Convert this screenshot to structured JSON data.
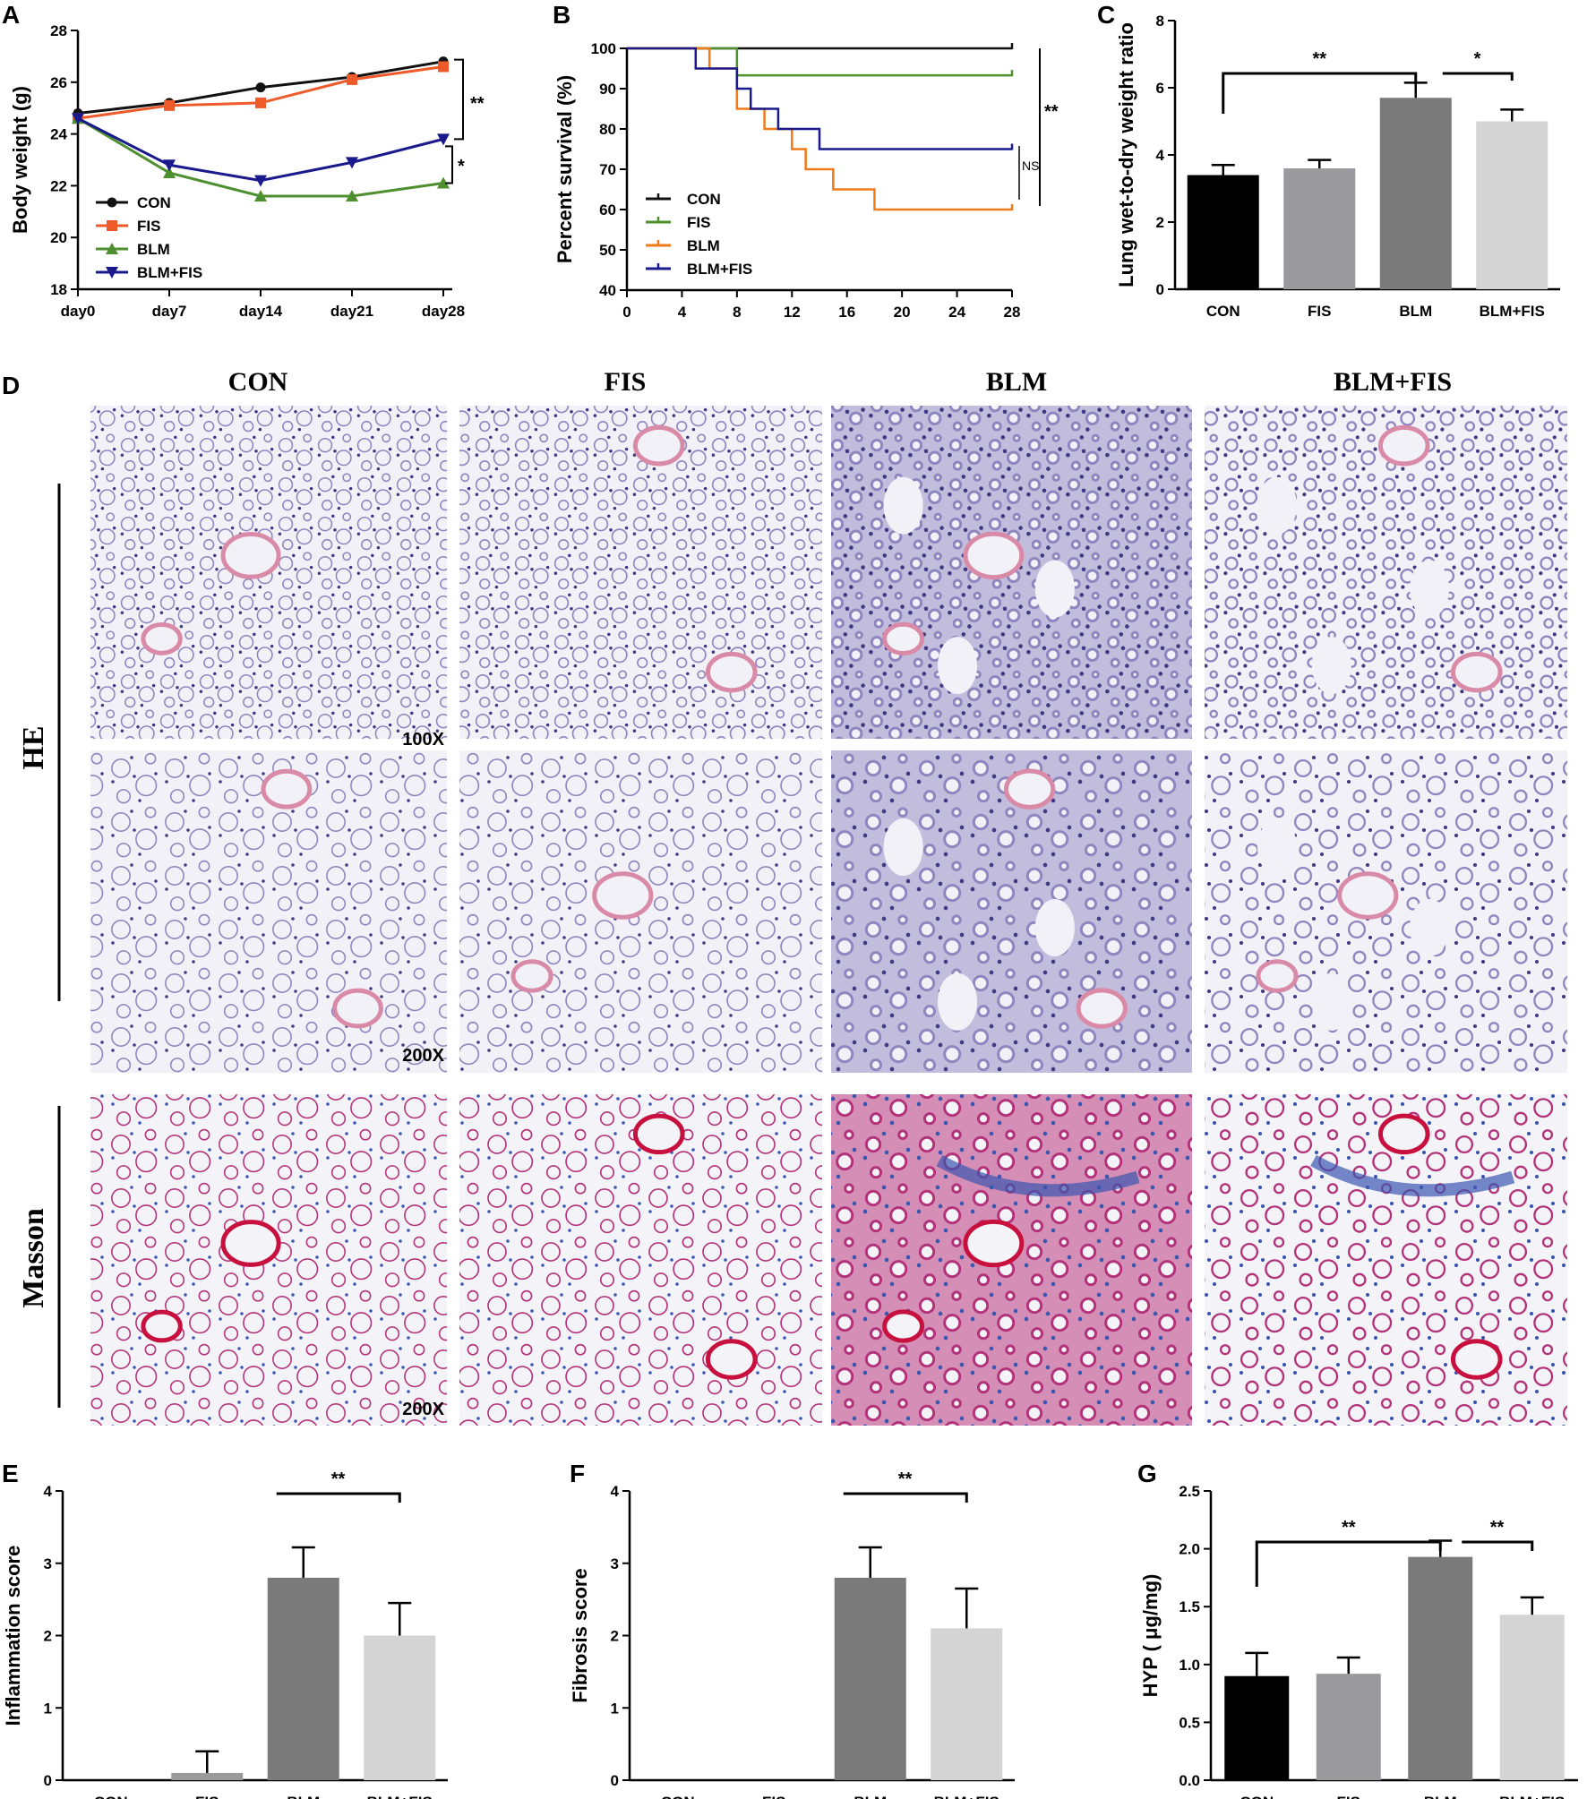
{
  "figure": {
    "panel_letters": [
      "A",
      "B",
      "C",
      "D",
      "E",
      "F",
      "G"
    ],
    "histology": {
      "column_headers": [
        "CON",
        "FIS",
        "BLM",
        "BLM+FIS"
      ],
      "row_groups": [
        "HE",
        "Masson"
      ],
      "magnifications": [
        "100X",
        "200X",
        "200X"
      ],
      "stain_colors": {
        "he_background": "#f2f1f7",
        "he_tissue": "#8f86bf",
        "he_nuclei": "#3f3a82",
        "he_eosin": "#d98aa6",
        "masson_background": "#f4f3f8",
        "masson_tissue": "#b3337a",
        "masson_collagen": "#3a56b0",
        "masson_muscle": "#c8103f"
      }
    }
  },
  "chart_data": [
    {
      "panel": "A",
      "type": "line",
      "xlabel": "",
      "ylabel": "Body weight (g)",
      "categories": [
        "day0",
        "day7",
        "day14",
        "day21",
        "day28"
      ],
      "ylim": [
        18,
        28
      ],
      "yticks": [
        18,
        20,
        22,
        24,
        26,
        28
      ],
      "legend_position": "bottom-left",
      "series": [
        {
          "name": "CON",
          "color": "#111111",
          "marker": "circle",
          "values": [
            24.8,
            25.2,
            25.8,
            26.2,
            26.8
          ]
        },
        {
          "name": "FIS",
          "color": "#ee5a2a",
          "marker": "square",
          "values": [
            24.6,
            25.1,
            25.2,
            26.1,
            26.6
          ]
        },
        {
          "name": "BLM",
          "color": "#4e8f2f",
          "marker": "triangle-up",
          "values": [
            24.6,
            22.5,
            21.6,
            21.6,
            22.1
          ]
        },
        {
          "name": "BLM+FIS",
          "color": "#1a1a8c",
          "marker": "triangle-down",
          "values": [
            24.6,
            22.8,
            22.2,
            22.9,
            23.8
          ]
        }
      ],
      "significance": [
        "**",
        "*"
      ]
    },
    {
      "panel": "B",
      "type": "line",
      "subtype": "step",
      "xlabel": "",
      "ylabel": "Percent survival (%)",
      "xlim": [
        0,
        28
      ],
      "xticks": [
        0,
        4,
        8,
        12,
        16,
        20,
        24,
        28
      ],
      "ylim": [
        40,
        100
      ],
      "yticks": [
        40,
        50,
        60,
        70,
        80,
        90,
        100
      ],
      "legend_position": "bottom-left",
      "series": [
        {
          "name": "CON",
          "color": "#111111",
          "steps": [
            [
              0,
              100
            ],
            [
              28,
              100
            ]
          ]
        },
        {
          "name": "FIS",
          "color": "#4e8f2f",
          "steps": [
            [
              0,
              100
            ],
            [
              8,
              93.3
            ],
            [
              28,
              93.3
            ]
          ]
        },
        {
          "name": "BLM",
          "color": "#ee7a1a",
          "steps": [
            [
              0,
              100
            ],
            [
              6,
              95
            ],
            [
              8,
              85
            ],
            [
              10,
              80
            ],
            [
              12,
              75
            ],
            [
              13,
              70
            ],
            [
              15,
              65
            ],
            [
              18,
              60
            ],
            [
              28,
              60
            ]
          ]
        },
        {
          "name": "BLM+FIS",
          "color": "#1a1a8c",
          "steps": [
            [
              0,
              100
            ],
            [
              5,
              95
            ],
            [
              8,
              90
            ],
            [
              9,
              85
            ],
            [
              11,
              80
            ],
            [
              14,
              75
            ],
            [
              28,
              75
            ]
          ]
        }
      ],
      "significance": [
        "**",
        "NS"
      ]
    },
    {
      "panel": "C",
      "type": "bar",
      "xlabel": "",
      "ylabel": "Lung wet-to-dry weight ratio",
      "categories": [
        "CON",
        "FIS",
        "BLM",
        "BLM+FIS"
      ],
      "values": [
        3.4,
        3.6,
        5.7,
        5.0
      ],
      "errors": [
        0.3,
        0.25,
        0.45,
        0.35
      ],
      "colors": [
        "#000000",
        "#9a9a9e",
        "#7a7a7a",
        "#d4d4d4"
      ],
      "ylim": [
        0,
        8
      ],
      "yticks": [
        0,
        2,
        4,
        6,
        8
      ],
      "significance": [
        {
          "from": 0,
          "to": 2,
          "label": "**"
        },
        {
          "from": 2,
          "to": 3,
          "label": "*"
        }
      ]
    },
    {
      "panel": "E",
      "type": "bar",
      "xlabel": "",
      "ylabel": "Inflammation score",
      "categories": [
        "CON",
        "FIS",
        "BLM",
        "BLM+FIS"
      ],
      "values": [
        0,
        0.1,
        2.8,
        2.0
      ],
      "errors": [
        0,
        0.3,
        0.42,
        0.45
      ],
      "colors": [
        "#000000",
        "#9a9a9e",
        "#7a7a7a",
        "#d4d4d4"
      ],
      "ylim": [
        0,
        4
      ],
      "yticks": [
        0,
        1,
        2,
        3,
        4
      ],
      "significance": [
        {
          "from": 2,
          "to": 3,
          "label": "**"
        }
      ]
    },
    {
      "panel": "F",
      "type": "bar",
      "xlabel": "",
      "ylabel": "Fibrosis score",
      "categories": [
        "CON",
        "FIS",
        "BLM",
        "BLM+FIS"
      ],
      "values": [
        0,
        0,
        2.8,
        2.1
      ],
      "errors": [
        0,
        0,
        0.42,
        0.55
      ],
      "colors": [
        "#000000",
        "#9a9a9e",
        "#7a7a7a",
        "#d4d4d4"
      ],
      "ylim": [
        0,
        4
      ],
      "yticks": [
        0,
        1,
        2,
        3,
        4
      ],
      "significance": [
        {
          "from": 2,
          "to": 3,
          "label": "**"
        }
      ]
    },
    {
      "panel": "G",
      "type": "bar",
      "xlabel": "",
      "ylabel": "HYP ( μg/mg)",
      "categories": [
        "CON",
        "FIS",
        "BLM",
        "BLM+FIS"
      ],
      "values": [
        0.9,
        0.92,
        1.93,
        1.43
      ],
      "errors": [
        0.2,
        0.14,
        0.14,
        0.15
      ],
      "colors": [
        "#000000",
        "#9a9a9e",
        "#7a7a7a",
        "#d4d4d4"
      ],
      "ylim": [
        0,
        2.5
      ],
      "yticks": [
        0.0,
        0.5,
        1.0,
        1.5,
        2.0,
        2.5
      ],
      "tick_decimals": 1,
      "significance": [
        {
          "from": 0,
          "to": 2,
          "label": "**"
        },
        {
          "from": 2,
          "to": 3,
          "label": "**"
        }
      ]
    }
  ]
}
